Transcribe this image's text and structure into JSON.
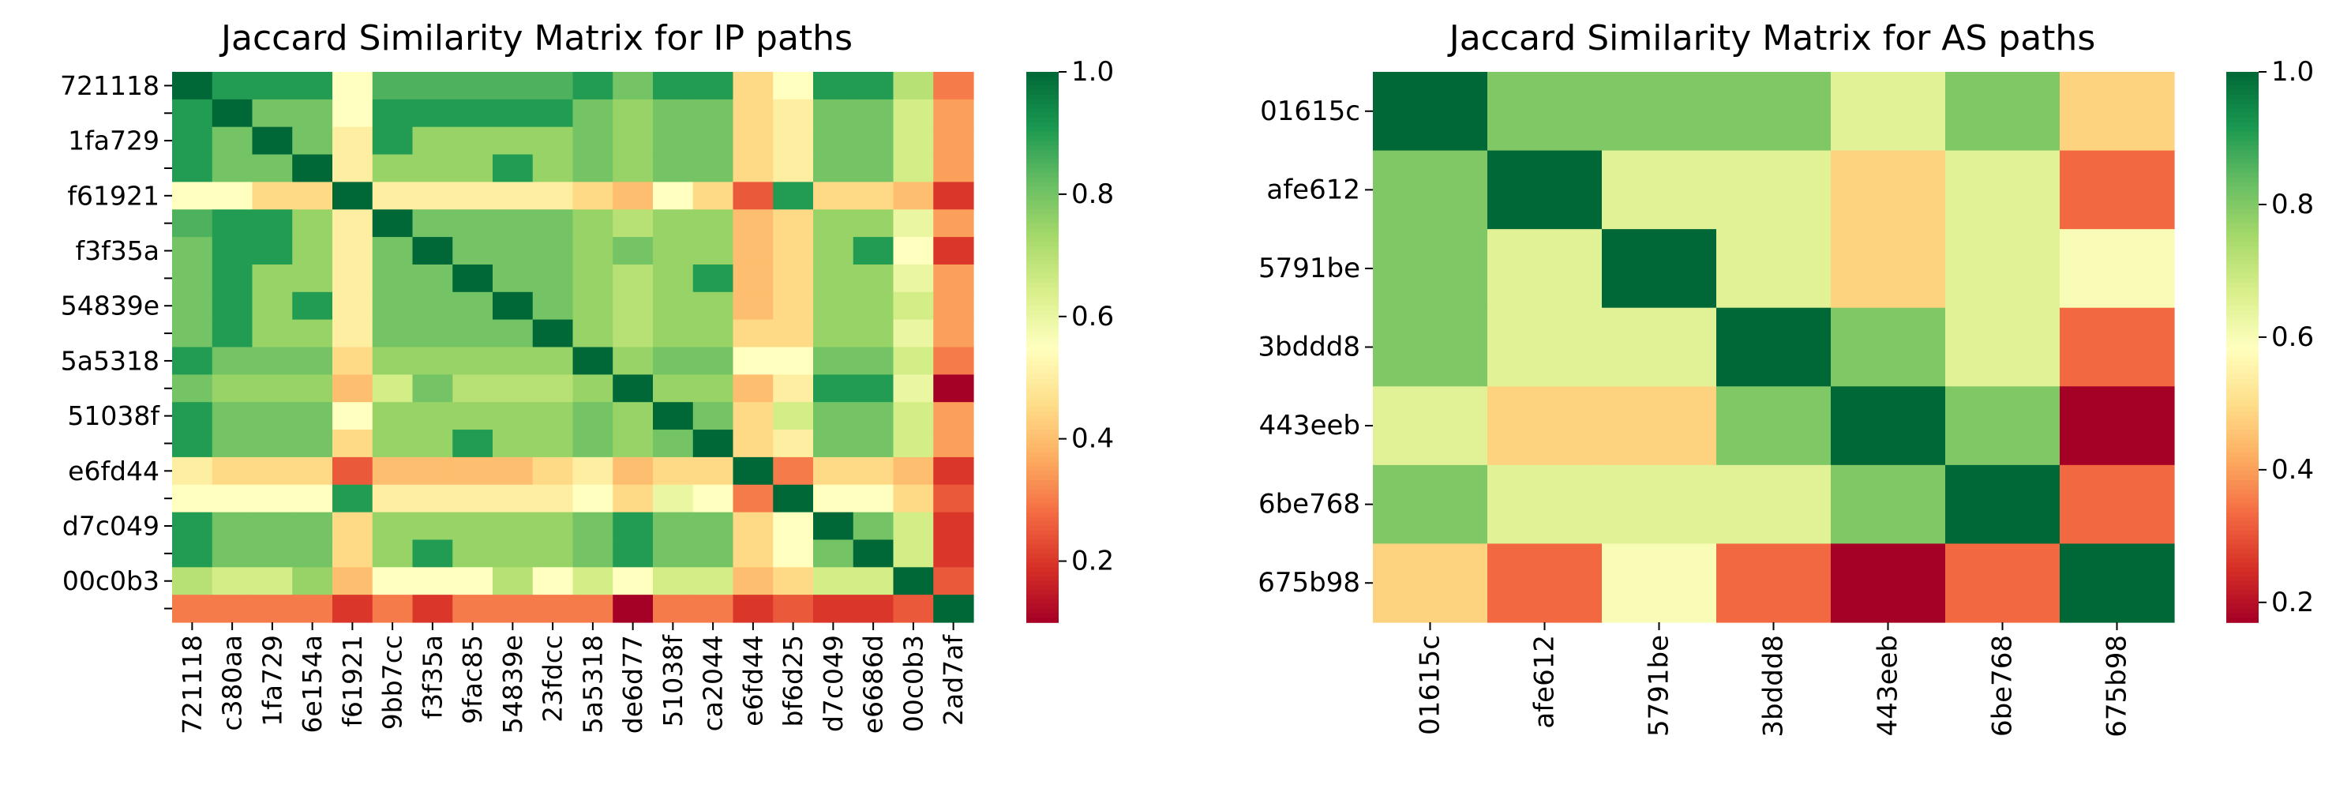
{
  "colorscale": {
    "name": "RdYlGn",
    "stops": [
      "#a50026",
      "#d73027",
      "#f46d43",
      "#fdae61",
      "#fee08b",
      "#ffffbf",
      "#d9ef8b",
      "#a6d96a",
      "#66bd63",
      "#1a9850",
      "#006837"
    ]
  },
  "chart_data": [
    {
      "type": "heatmap",
      "title": "Jaccard Similarity Matrix for IP paths",
      "x_tick_labels": [
        "721118",
        "c380aa",
        "1fa729",
        "6e154a",
        "f61921",
        "9bb7cc",
        "f3f35a",
        "9fac85",
        "54839e",
        "23fdcc",
        "5a5318",
        "de6d77",
        "51038f",
        "ca2044",
        "e6fd44",
        "bf6d25",
        "d7c049",
        "e6686d",
        "00c0b3",
        "2ad7af"
      ],
      "y_tick_labels": [
        "721118",
        "",
        "1fa729",
        "",
        "f61921",
        "",
        "f3f35a",
        "",
        "54839e",
        "",
        "5a5318",
        "",
        "51038f",
        "",
        "e6fd44",
        "",
        "d7c049",
        "",
        "00c0b3",
        ""
      ],
      "row_ids": [
        "721118",
        "c380aa",
        "1fa729",
        "6e154a",
        "f61921",
        "9bb7cc",
        "f3f35a",
        "9fac85",
        "54839e",
        "23fdcc",
        "5a5318",
        "de6d77",
        "51038f",
        "ca2044",
        "e6fd44",
        "bf6d25",
        "d7c049",
        "e6686d",
        "00c0b3",
        "2ad7af"
      ],
      "values": [
        [
          1.0,
          0.9,
          0.9,
          0.9,
          0.55,
          0.85,
          0.85,
          0.85,
          0.85,
          0.85,
          0.9,
          0.8,
          0.9,
          0.9,
          0.45,
          0.55,
          0.9,
          0.9,
          0.7,
          0.3
        ],
        [
          0.9,
          1.0,
          0.8,
          0.8,
          0.55,
          0.9,
          0.9,
          0.9,
          0.9,
          0.9,
          0.8,
          0.75,
          0.8,
          0.8,
          0.45,
          0.5,
          0.8,
          0.8,
          0.65,
          0.35
        ],
        [
          0.9,
          0.8,
          1.0,
          0.8,
          0.5,
          0.9,
          0.75,
          0.75,
          0.75,
          0.75,
          0.8,
          0.75,
          0.8,
          0.8,
          0.45,
          0.5,
          0.8,
          0.8,
          0.65,
          0.35
        ],
        [
          0.9,
          0.8,
          0.8,
          1.0,
          0.5,
          0.75,
          0.75,
          0.75,
          0.9,
          0.75,
          0.8,
          0.75,
          0.8,
          0.8,
          0.45,
          0.5,
          0.8,
          0.8,
          0.65,
          0.35
        ],
        [
          0.55,
          0.55,
          0.45,
          0.45,
          1.0,
          0.5,
          0.5,
          0.5,
          0.5,
          0.5,
          0.45,
          0.4,
          0.55,
          0.45,
          0.25,
          0.9,
          0.45,
          0.45,
          0.4,
          0.2
        ],
        [
          0.85,
          0.9,
          0.9,
          0.75,
          0.5,
          1.0,
          0.8,
          0.8,
          0.8,
          0.8,
          0.75,
          0.7,
          0.75,
          0.75,
          0.4,
          0.45,
          0.75,
          0.75,
          0.6,
          0.35
        ],
        [
          0.8,
          0.9,
          0.9,
          0.75,
          0.5,
          0.8,
          1.0,
          0.8,
          0.8,
          0.8,
          0.75,
          0.8,
          0.75,
          0.75,
          0.4,
          0.45,
          0.75,
          0.9,
          0.55,
          0.2
        ],
        [
          0.8,
          0.9,
          0.75,
          0.75,
          0.5,
          0.8,
          0.8,
          1.0,
          0.8,
          0.8,
          0.75,
          0.7,
          0.75,
          0.9,
          0.4,
          0.45,
          0.75,
          0.75,
          0.6,
          0.35
        ],
        [
          0.8,
          0.9,
          0.75,
          0.9,
          0.5,
          0.8,
          0.8,
          0.8,
          1.0,
          0.8,
          0.75,
          0.7,
          0.75,
          0.75,
          0.4,
          0.45,
          0.75,
          0.75,
          0.65,
          0.35
        ],
        [
          0.8,
          0.9,
          0.75,
          0.75,
          0.5,
          0.8,
          0.8,
          0.8,
          0.8,
          1.0,
          0.75,
          0.7,
          0.75,
          0.75,
          0.45,
          0.45,
          0.75,
          0.75,
          0.6,
          0.35
        ],
        [
          0.9,
          0.8,
          0.8,
          0.8,
          0.45,
          0.75,
          0.75,
          0.75,
          0.75,
          0.75,
          1.0,
          0.75,
          0.8,
          0.8,
          0.55,
          0.55,
          0.8,
          0.8,
          0.65,
          0.3
        ],
        [
          0.8,
          0.75,
          0.75,
          0.75,
          0.4,
          0.65,
          0.8,
          0.7,
          0.7,
          0.7,
          0.75,
          1.0,
          0.75,
          0.75,
          0.4,
          0.5,
          0.9,
          0.9,
          0.6,
          0.1
        ],
        [
          0.9,
          0.8,
          0.8,
          0.8,
          0.55,
          0.75,
          0.75,
          0.75,
          0.75,
          0.75,
          0.8,
          0.75,
          1.0,
          0.8,
          0.45,
          0.65,
          0.8,
          0.8,
          0.65,
          0.35
        ],
        [
          0.9,
          0.8,
          0.8,
          0.8,
          0.45,
          0.75,
          0.75,
          0.9,
          0.75,
          0.75,
          0.8,
          0.75,
          0.8,
          1.0,
          0.45,
          0.5,
          0.8,
          0.8,
          0.65,
          0.35
        ],
        [
          0.5,
          0.45,
          0.45,
          0.45,
          0.25,
          0.4,
          0.4,
          0.4,
          0.4,
          0.45,
          0.5,
          0.4,
          0.45,
          0.45,
          1.0,
          0.3,
          0.45,
          0.45,
          0.4,
          0.2
        ],
        [
          0.55,
          0.55,
          0.55,
          0.55,
          0.9,
          0.5,
          0.5,
          0.5,
          0.5,
          0.5,
          0.55,
          0.45,
          0.6,
          0.55,
          0.3,
          1.0,
          0.55,
          0.55,
          0.45,
          0.25
        ],
        [
          0.9,
          0.8,
          0.8,
          0.8,
          0.45,
          0.75,
          0.75,
          0.75,
          0.75,
          0.75,
          0.8,
          0.9,
          0.8,
          0.8,
          0.45,
          0.55,
          1.0,
          0.8,
          0.65,
          0.2
        ],
        [
          0.9,
          0.8,
          0.8,
          0.8,
          0.45,
          0.75,
          0.9,
          0.75,
          0.75,
          0.75,
          0.8,
          0.9,
          0.8,
          0.8,
          0.45,
          0.55,
          0.8,
          1.0,
          0.65,
          0.2
        ],
        [
          0.7,
          0.65,
          0.65,
          0.75,
          0.4,
          0.55,
          0.55,
          0.55,
          0.7,
          0.55,
          0.65,
          0.55,
          0.65,
          0.65,
          0.4,
          0.45,
          0.65,
          0.65,
          1.0,
          0.25
        ],
        [
          0.3,
          0.3,
          0.3,
          0.3,
          0.2,
          0.3,
          0.2,
          0.3,
          0.3,
          0.3,
          0.3,
          0.1,
          0.3,
          0.3,
          0.2,
          0.25,
          0.2,
          0.2,
          0.25,
          1.0
        ]
      ],
      "colorbar": {
        "vmin": 0.1,
        "vmax": 1.0,
        "ticks": [
          0.2,
          0.4,
          0.6,
          0.8,
          1.0
        ],
        "tick_labels": [
          "0.2",
          "0.4",
          "0.6",
          "0.8",
          "1.0"
        ]
      }
    },
    {
      "type": "heatmap",
      "title": "Jaccard Similarity Matrix for AS paths",
      "x_tick_labels": [
        "01615c",
        "afe612",
        "5791be",
        "3bddd8",
        "443eeb",
        "6be768",
        "675b98"
      ],
      "y_tick_labels": [
        "01615c",
        "afe612",
        "5791be",
        "3bddd8",
        "443eeb",
        "6be768",
        "675b98"
      ],
      "row_ids": [
        "01615c",
        "afe612",
        "5791be",
        "3bddd8",
        "443eeb",
        "6be768",
        "675b98"
      ],
      "values": [
        [
          1.0,
          0.8,
          0.8,
          0.8,
          0.65,
          0.8,
          0.48
        ],
        [
          0.8,
          1.0,
          0.65,
          0.65,
          0.48,
          0.65,
          0.33
        ],
        [
          0.8,
          0.65,
          1.0,
          0.65,
          0.48,
          0.65,
          0.6
        ],
        [
          0.8,
          0.65,
          0.65,
          1.0,
          0.8,
          0.65,
          0.33
        ],
        [
          0.65,
          0.48,
          0.48,
          0.8,
          1.0,
          0.8,
          0.17
        ],
        [
          0.8,
          0.65,
          0.65,
          0.65,
          0.8,
          1.0,
          0.33
        ],
        [
          0.48,
          0.33,
          0.6,
          0.33,
          0.17,
          0.33,
          1.0
        ]
      ],
      "colorbar": {
        "vmin": 0.17,
        "vmax": 1.0,
        "ticks": [
          0.2,
          0.4,
          0.6,
          0.8,
          1.0
        ],
        "tick_labels": [
          "0.2",
          "0.4",
          "0.6",
          "0.8",
          "1.0"
        ]
      }
    }
  ]
}
